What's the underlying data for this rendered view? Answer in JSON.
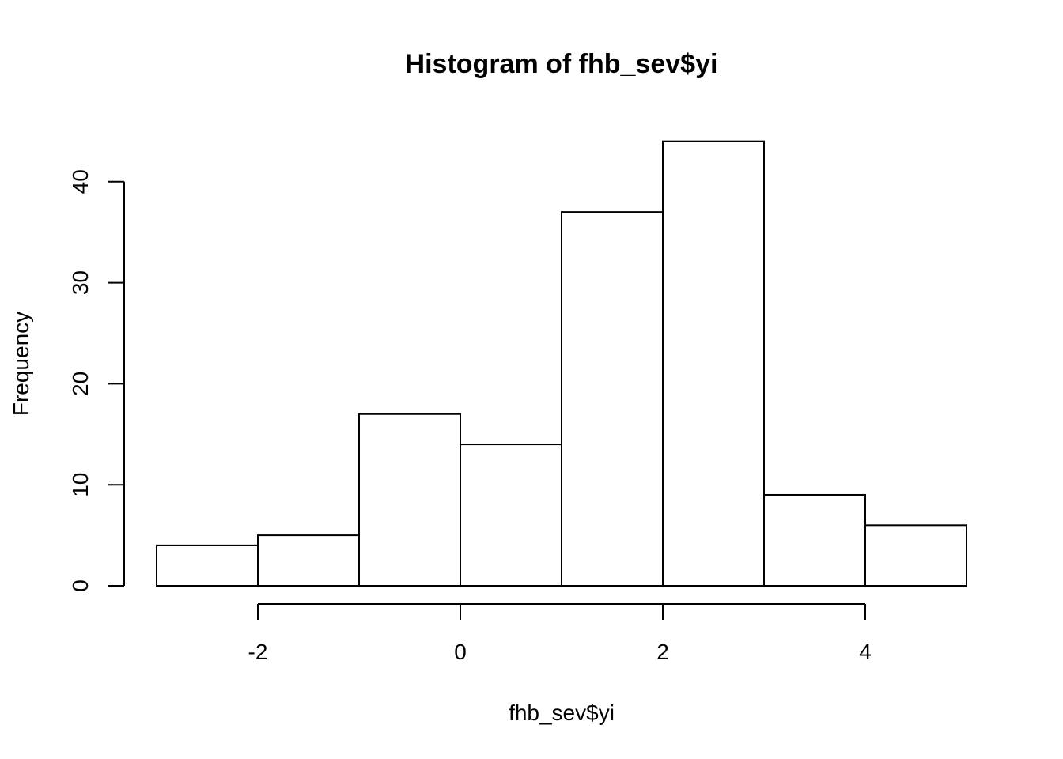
{
  "chart_data": {
    "type": "bar",
    "title": "Histogram of fhb_sev$yi",
    "xlabel": "fhb_sev$yi",
    "ylabel": "Frequency",
    "bins": [
      {
        "from": -3,
        "to": -2,
        "count": 4
      },
      {
        "from": -2,
        "to": -1,
        "count": 5
      },
      {
        "from": -1,
        "to": 0,
        "count": 17
      },
      {
        "from": 0,
        "to": 1,
        "count": 14
      },
      {
        "from": 1,
        "to": 2,
        "count": 37
      },
      {
        "from": 2,
        "to": 3,
        "count": 44
      },
      {
        "from": 3,
        "to": 4,
        "count": 9
      },
      {
        "from": 4,
        "to": 5,
        "count": 6
      }
    ],
    "x_ticks": [
      -2,
      0,
      2,
      4
    ],
    "x_tick_labels": [
      "-2",
      "0",
      "2",
      "4"
    ],
    "y_ticks": [
      0,
      10,
      20,
      30,
      40
    ],
    "y_tick_labels": [
      "0",
      "10",
      "20",
      "30",
      "40"
    ],
    "xlim": [
      -3,
      5
    ],
    "ylim": [
      0,
      44
    ],
    "grid": false,
    "bar_fill": "#ffffff",
    "bar_stroke": "#000000"
  }
}
